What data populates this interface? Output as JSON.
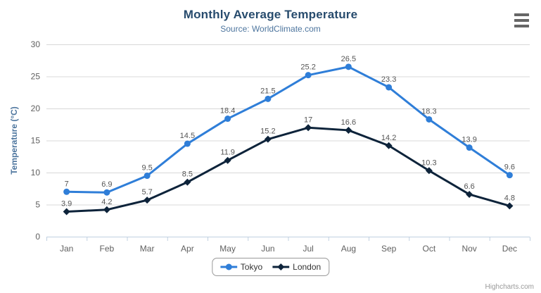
{
  "chart_data": {
    "type": "line",
    "title": "Monthly Average Temperature",
    "subtitle": "Source: WorldClimate.com",
    "categories": [
      "Jan",
      "Feb",
      "Mar",
      "Apr",
      "May",
      "Jun",
      "Jul",
      "Aug",
      "Sep",
      "Oct",
      "Nov",
      "Dec"
    ],
    "xlabel": "",
    "ylabel": "Temperature (°C)",
    "ylim": [
      0,
      30
    ],
    "yticks": [
      0,
      5,
      10,
      15,
      20,
      25,
      30
    ],
    "grid": true,
    "legend_position": "bottom",
    "data_labels_visible": true,
    "series": [
      {
        "name": "Tokyo",
        "color": "#2f7ed8",
        "marker": "circle",
        "values": [
          7,
          6.9,
          9.5,
          14.5,
          18.4,
          21.5,
          25.2,
          26.5,
          23.3,
          18.3,
          13.9,
          9.6
        ]
      },
      {
        "name": "London",
        "color": "#0d233a",
        "marker": "diamond",
        "values": [
          3.9,
          4.2,
          5.7,
          8.5,
          11.9,
          15.2,
          17,
          16.6,
          14.2,
          10.3,
          6.6,
          4.8
        ]
      }
    ]
  },
  "theme": {
    "title_color": "#274b6d",
    "subtitle_color": "#4d759e",
    "axis_title_color": "#4d759e",
    "axis_label_color": "#606060",
    "data_label_color": "#555555",
    "grid_color": "#d8d8d8",
    "axis_line_color": "#c0d0e0",
    "legend_text_color": "#333333",
    "legend_border_color": "#999999",
    "menu_icon_color": "#666666",
    "credits_color": "#999999"
  },
  "credits": {
    "text": "Highcharts.com"
  }
}
